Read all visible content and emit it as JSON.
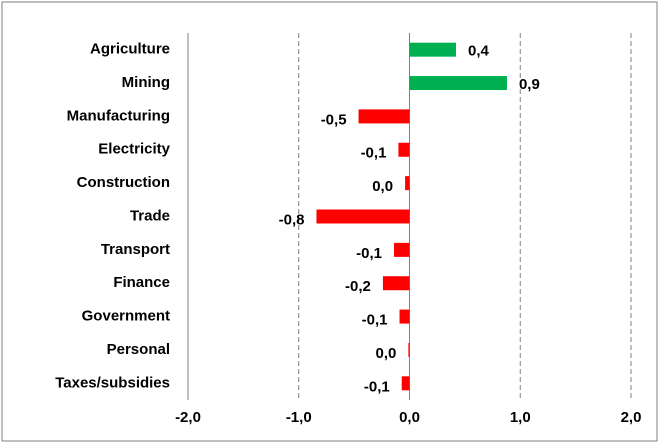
{
  "chart_data": {
    "type": "hbar",
    "categories": [
      "Agriculture",
      "Mining",
      "Manufacturing",
      "Electricity",
      "Construction",
      "Trade",
      "Transport",
      "Finance",
      "Government",
      "Personal",
      "Taxes/subsidies"
    ],
    "values": [
      0.42,
      0.88,
      -0.46,
      -0.1,
      -0.04,
      -0.84,
      -0.14,
      -0.24,
      -0.09,
      -0.01,
      -0.07
    ],
    "value_labels": [
      "0,4",
      "0,9",
      "-0,5",
      "-0,1",
      "0,0",
      "-0,8",
      "-0,1",
      "-0,2",
      "-0,1",
      "0,0",
      "-0,1"
    ],
    "colors": [
      "#00b050",
      "#00b050",
      "#ff0000",
      "#ff0000",
      "#ff0000",
      "#ff0000",
      "#ff0000",
      "#ff0000",
      "#ff0000",
      "#ff0000",
      "#ff0000"
    ],
    "xlim": [
      -2,
      2
    ],
    "xticks": [
      {
        "value": -2,
        "label": "-2,0"
      },
      {
        "value": -1,
        "label": "-1,0"
      },
      {
        "value": 0,
        "label": "0,0"
      },
      {
        "value": 1,
        "label": "1,0"
      },
      {
        "value": 2,
        "label": "2,0"
      }
    ],
    "grid": true
  }
}
